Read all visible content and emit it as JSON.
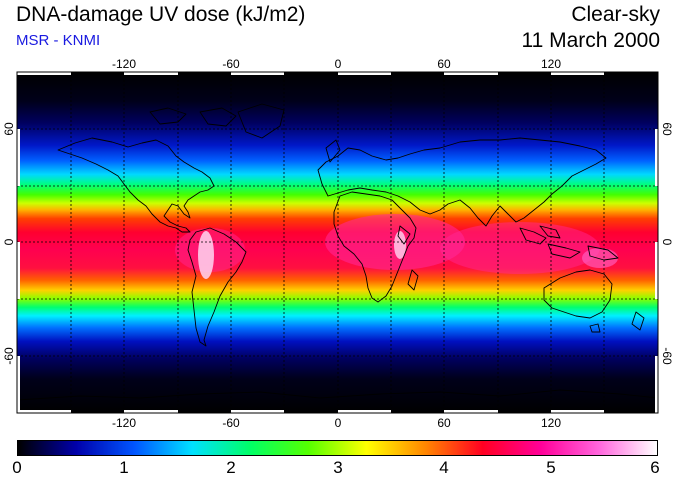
{
  "header": {
    "title": "DNA-damage UV dose (kJ/m2)",
    "subtitle": "MSR - KNMI",
    "mode": "Clear-sky",
    "date": "11 March 2000"
  },
  "map": {
    "projection": "equirectangular",
    "lon_ticks": [
      "-120",
      "-60",
      "0",
      "60",
      "120"
    ],
    "lat_ticks": [
      "60",
      "0",
      "-60"
    ],
    "grid_lines": "dashed every 30 degrees",
    "lon_range": [
      -180,
      180
    ],
    "lat_range": [
      -90,
      90
    ]
  },
  "colorbar": {
    "min": 0,
    "max": 6,
    "tick_labels": [
      "0",
      "1",
      "2",
      "3",
      "4",
      "5",
      "6"
    ],
    "colors": [
      "#000000",
      "#0000aa",
      "#0055ff",
      "#00e0ff",
      "#00ff66",
      "#55ff00",
      "#ffff00",
      "#ff8800",
      "#ff0022",
      "#ff0099",
      "#ff66dd",
      "#ffffff"
    ]
  },
  "colors": {
    "subtitle": "#1a1ae0",
    "coastline": "#000000",
    "grid": "#000000"
  }
}
